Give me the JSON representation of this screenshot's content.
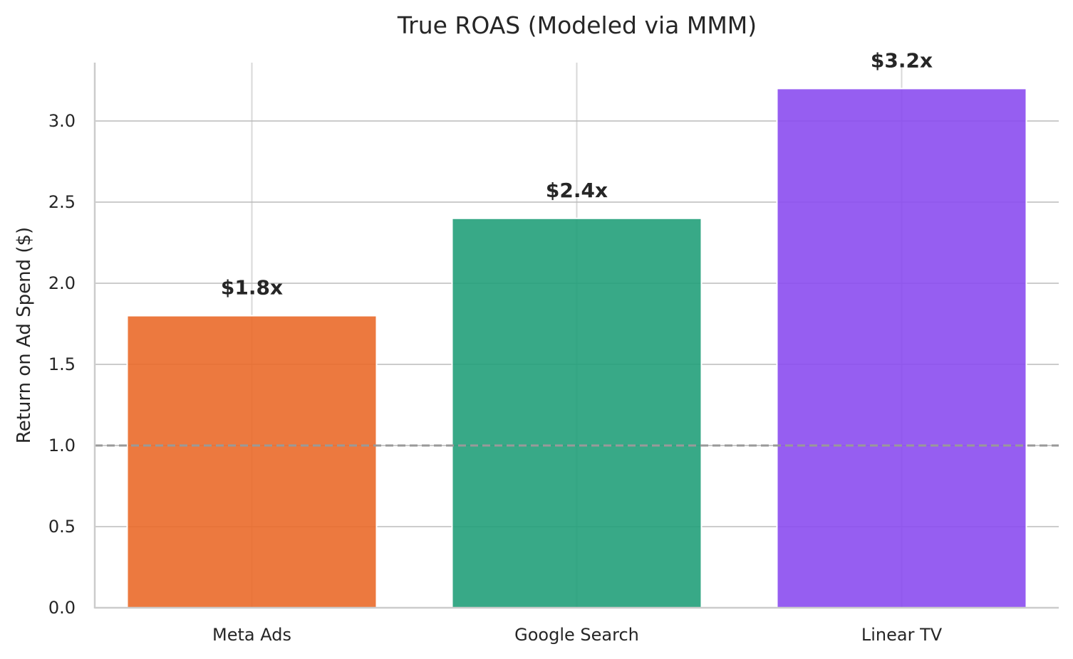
{
  "chart_data": {
    "type": "bar",
    "title": "True ROAS (Modeled via MMM)",
    "xlabel": "",
    "ylabel": "Return on Ad Spend ($)",
    "categories": [
      "Meta Ads",
      "Google Search",
      "Linear TV"
    ],
    "values": [
      1.8,
      2.4,
      3.2
    ],
    "data_labels": [
      "$1.8x",
      "$2.4x",
      "$3.2x"
    ],
    "colors": [
      "#ea6a2a",
      "#22a07a",
      "#8b4cf0"
    ],
    "ylim": [
      0,
      3.35
    ],
    "yticks": [
      0.0,
      0.5,
      1.0,
      1.5,
      2.0,
      2.5,
      3.0
    ],
    "ytick_labels": [
      "0.0",
      "0.5",
      "1.0",
      "1.5",
      "2.0",
      "2.5",
      "3.0"
    ],
    "reference_line": {
      "y": 1.0,
      "style": "dashed",
      "color": "#999999"
    },
    "grid": true
  }
}
